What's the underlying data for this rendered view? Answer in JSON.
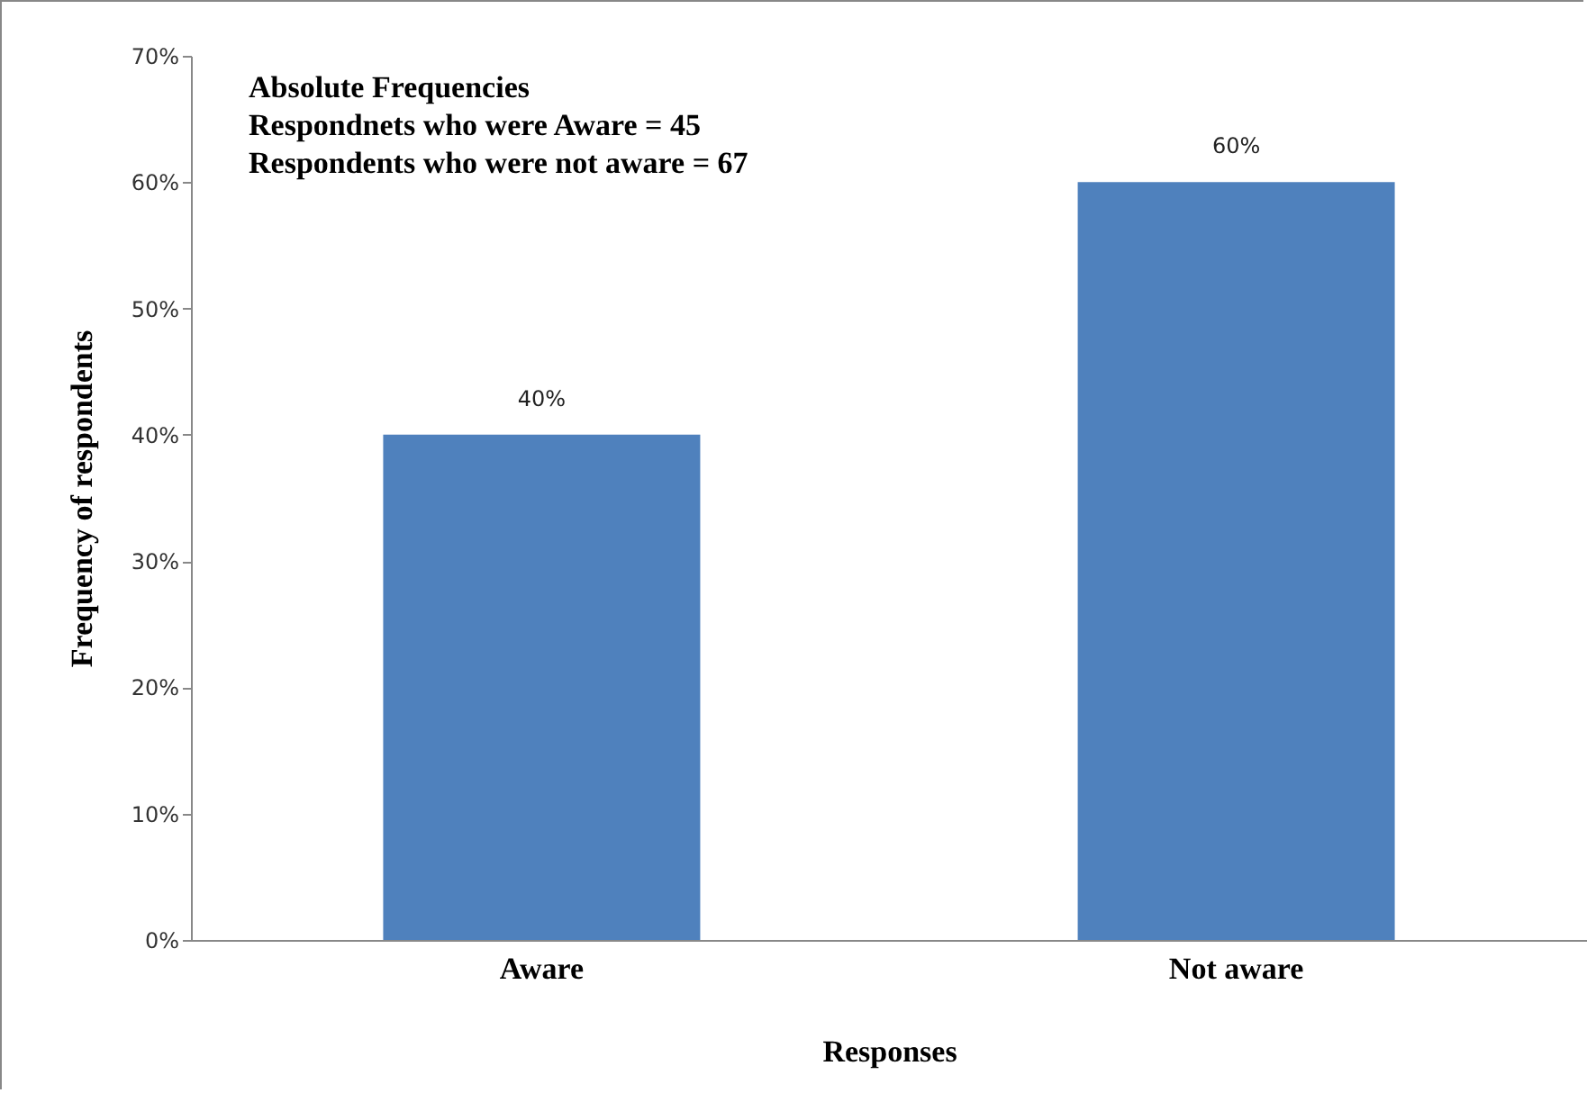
{
  "chart_data": {
    "type": "bar",
    "categories": [
      "Aware",
      "Not aware"
    ],
    "values": [
      40,
      60
    ],
    "color": "#4f81bd",
    "value_labels": [
      "40%",
      "60%"
    ],
    "xlabel": "Responses",
    "ylabel": "Frequency of respondents",
    "ylim": [
      0,
      70
    ],
    "yticks": [
      {
        "value": 0,
        "label": "0%"
      },
      {
        "value": 10,
        "label": "10%"
      },
      {
        "value": 20,
        "label": "20%"
      },
      {
        "value": 30,
        "label": "30%"
      },
      {
        "value": 40,
        "label": "40%"
      },
      {
        "value": 50,
        "label": "50%"
      },
      {
        "value": 60,
        "label": "60%"
      },
      {
        "value": 70,
        "label": "70%"
      }
    ],
    "annotations": [
      "Absolute Frequencies",
      "Respondnets who were Aware = 45",
      "Respondents who were not aware =  67"
    ],
    "grid": false
  }
}
